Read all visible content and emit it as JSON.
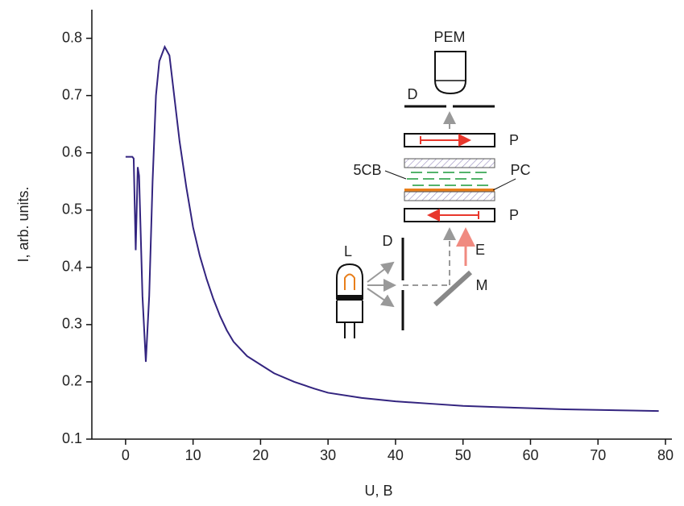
{
  "chart_data": {
    "type": "line",
    "x_label": "U, B",
    "y_label": "I, arb. units.",
    "xlim": [
      -5,
      80
    ],
    "ylim": [
      0.1,
      0.85
    ],
    "xticks": [
      0,
      10,
      20,
      30,
      40,
      50,
      60,
      70,
      80
    ],
    "yticks": [
      0.1,
      0.2,
      0.3,
      0.4,
      0.5,
      0.6,
      0.7,
      0.8
    ],
    "grid": false,
    "series": [
      {
        "color": "#33247f",
        "x": [
          0,
          1.0,
          1.2,
          1.5,
          1.8,
          2.0,
          2.5,
          3.0,
          3.5,
          4.0,
          4.5,
          5.0,
          5.8,
          6.5,
          7.0,
          8,
          9,
          10,
          11,
          12,
          13,
          14,
          15,
          16,
          18,
          20,
          22,
          25,
          28,
          30,
          35,
          40,
          45,
          50,
          55,
          60,
          65,
          70,
          75,
          79
        ],
        "values": [
          0.593,
          0.593,
          0.59,
          0.43,
          0.575,
          0.56,
          0.35,
          0.235,
          0.35,
          0.55,
          0.7,
          0.76,
          0.785,
          0.77,
          0.72,
          0.62,
          0.54,
          0.47,
          0.42,
          0.38,
          0.345,
          0.315,
          0.29,
          0.27,
          0.245,
          0.23,
          0.215,
          0.2,
          0.188,
          0.181,
          0.172,
          0.166,
          0.162,
          0.158,
          0.156,
          0.154,
          0.152,
          0.151,
          0.15,
          0.149
        ]
      }
    ]
  },
  "inset": {
    "labels": {
      "pem": "PEM",
      "d_top": "D",
      "p_top": "P",
      "lc": "5CB",
      "pc": "PC",
      "p_bottom": "P",
      "e": "E",
      "d_left": "D",
      "l": "L",
      "m": "M"
    }
  }
}
